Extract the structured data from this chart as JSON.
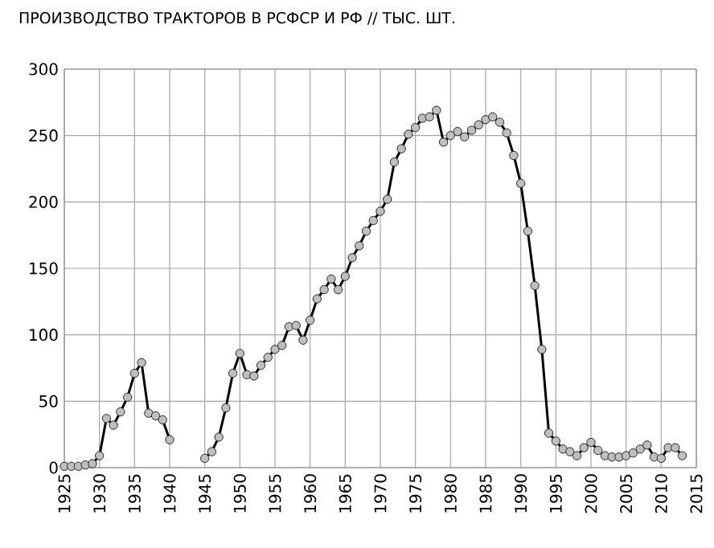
{
  "chart_data": {
    "type": "line",
    "title": "ПРОИЗВОДСТВО ТРАКТОРОВ В РСФСР И РФ // ТЫС. ШТ.",
    "x": [
      1925,
      1926,
      1927,
      1928,
      1929,
      1930,
      1931,
      1932,
      1933,
      1934,
      1935,
      1936,
      1937,
      1938,
      1939,
      1940,
      1941,
      1942,
      1943,
      1944,
      1945,
      1946,
      1947,
      1948,
      1949,
      1950,
      1951,
      1952,
      1953,
      1954,
      1955,
      1956,
      1957,
      1958,
      1959,
      1960,
      1961,
      1962,
      1963,
      1964,
      1965,
      1966,
      1967,
      1968,
      1969,
      1970,
      1971,
      1972,
      1973,
      1974,
      1975,
      1976,
      1977,
      1978,
      1979,
      1980,
      1981,
      1982,
      1983,
      1984,
      1985,
      1986,
      1987,
      1988,
      1989,
      1990,
      1991,
      1992,
      1993,
      1994,
      1995,
      1996,
      1997,
      1998,
      1999,
      2000,
      2001,
      2002,
      2003,
      2004,
      2005,
      2006,
      2007,
      2008,
      2009,
      2010,
      2011,
      2012,
      2013
    ],
    "series": [
      {
        "color": "#000000",
        "values": [
          1,
          1,
          1,
          2,
          3,
          9,
          37,
          32,
          42,
          53,
          71,
          79,
          41,
          39,
          36,
          21,
          null,
          null,
          null,
          null,
          7,
          12,
          23,
          45,
          71,
          86,
          70,
          69,
          77,
          83,
          89,
          92,
          106,
          107,
          96,
          111,
          127,
          134,
          142,
          134,
          144,
          158,
          167,
          178,
          186,
          193,
          202,
          230,
          240,
          251,
          256,
          263,
          264,
          269,
          245,
          250,
          253,
          249,
          254,
          258,
          262,
          264,
          260,
          252,
          235,
          214,
          178,
          137,
          89,
          26,
          20,
          14,
          12,
          9,
          15,
          19,
          13,
          9,
          8,
          8,
          9,
          11,
          14,
          17,
          8,
          7,
          15,
          15,
          9
        ]
      }
    ],
    "xlim": [
      1925,
      2015
    ],
    "xticks": [
      1925,
      1930,
      1935,
      1940,
      1945,
      1950,
      1955,
      1960,
      1965,
      1970,
      1975,
      1980,
      1985,
      1990,
      1995,
      2000,
      2005,
      2010,
      2015
    ],
    "ylim": [
      0,
      300
    ],
    "yticks": [
      0,
      50,
      100,
      150,
      200,
      250,
      300
    ],
    "grid": true,
    "marker": "circle",
    "line_style": "solid"
  }
}
